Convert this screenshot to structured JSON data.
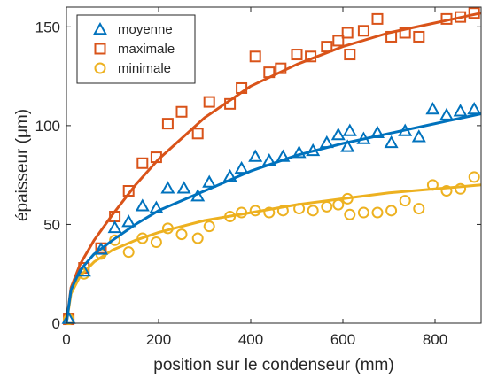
{
  "chart_data": {
    "type": "scatter",
    "title": "",
    "xlabel": "position sur le condenseur (mm)",
    "ylabel": "épaisseur (μm)",
    "xlim": [
      0,
      900
    ],
    "ylim": [
      0,
      160
    ],
    "xticks": [
      0,
      200,
      400,
      600,
      800
    ],
    "yticks": [
      0,
      50,
      100,
      150
    ],
    "grid": false,
    "legend_position": "top-left",
    "series": [
      {
        "name": "moyenne",
        "marker": "triangle",
        "color": "#0072BD",
        "points": [
          [
            5,
            2
          ],
          [
            38,
            26
          ],
          [
            75,
            37
          ],
          [
            105,
            48
          ],
          [
            135,
            51
          ],
          [
            165,
            59
          ],
          [
            195,
            58
          ],
          [
            220,
            68
          ],
          [
            255,
            68
          ],
          [
            285,
            64
          ],
          [
            310,
            71
          ],
          [
            355,
            74
          ],
          [
            380,
            78
          ],
          [
            410,
            84
          ],
          [
            440,
            82
          ],
          [
            470,
            84
          ],
          [
            505,
            86
          ],
          [
            535,
            87
          ],
          [
            565,
            91
          ],
          [
            590,
            95
          ],
          [
            610,
            89
          ],
          [
            615,
            97
          ],
          [
            645,
            93
          ],
          [
            675,
            96
          ],
          [
            705,
            91
          ],
          [
            735,
            97
          ],
          [
            765,
            94
          ],
          [
            795,
            108
          ],
          [
            825,
            105
          ],
          [
            855,
            107
          ],
          [
            885,
            108
          ]
        ],
        "fit_curve": [
          [
            0,
            0
          ],
          [
            10,
            17
          ],
          [
            30,
            27
          ],
          [
            60,
            35
          ],
          [
            100,
            42
          ],
          [
            150,
            50
          ],
          [
            200,
            57
          ],
          [
            300,
            67
          ],
          [
            400,
            77
          ],
          [
            500,
            85
          ],
          [
            600,
            91
          ],
          [
            700,
            96
          ],
          [
            800,
            101
          ],
          [
            900,
            106
          ]
        ]
      },
      {
        "name": "maximale",
        "marker": "square",
        "color": "#D95319",
        "points": [
          [
            5,
            2
          ],
          [
            38,
            28
          ],
          [
            75,
            38
          ],
          [
            105,
            54
          ],
          [
            135,
            67
          ],
          [
            165,
            81
          ],
          [
            195,
            84
          ],
          [
            220,
            101
          ],
          [
            250,
            107
          ],
          [
            285,
            96
          ],
          [
            310,
            112
          ],
          [
            355,
            111
          ],
          [
            380,
            119
          ],
          [
            410,
            135
          ],
          [
            440,
            127
          ],
          [
            465,
            129
          ],
          [
            500,
            136
          ],
          [
            530,
            135
          ],
          [
            565,
            140
          ],
          [
            590,
            143
          ],
          [
            610,
            147
          ],
          [
            615,
            136
          ],
          [
            645,
            148
          ],
          [
            675,
            154
          ],
          [
            705,
            145
          ],
          [
            735,
            147
          ],
          [
            765,
            145
          ],
          [
            825,
            154
          ],
          [
            855,
            155
          ],
          [
            885,
            157
          ]
        ],
        "fit_curve": [
          [
            0,
            0
          ],
          [
            10,
            18
          ],
          [
            30,
            30
          ],
          [
            60,
            42
          ],
          [
            100,
            55
          ],
          [
            150,
            70
          ],
          [
            200,
            83
          ],
          [
            300,
            104
          ],
          [
            400,
            120
          ],
          [
            500,
            131
          ],
          [
            600,
            140
          ],
          [
            700,
            147
          ],
          [
            800,
            152
          ],
          [
            900,
            157
          ]
        ]
      },
      {
        "name": "minimale",
        "marker": "circle",
        "color": "#EDB120",
        "points": [
          [
            5,
            2
          ],
          [
            38,
            25
          ],
          [
            75,
            35
          ],
          [
            105,
            42
          ],
          [
            135,
            36
          ],
          [
            165,
            43
          ],
          [
            195,
            41
          ],
          [
            220,
            48
          ],
          [
            250,
            45
          ],
          [
            285,
            43
          ],
          [
            310,
            49
          ],
          [
            355,
            54
          ],
          [
            380,
            56
          ],
          [
            410,
            57
          ],
          [
            440,
            56
          ],
          [
            470,
            57
          ],
          [
            505,
            58
          ],
          [
            535,
            57
          ],
          [
            565,
            59
          ],
          [
            590,
            60
          ],
          [
            610,
            63
          ],
          [
            615,
            55
          ],
          [
            645,
            56
          ],
          [
            675,
            56
          ],
          [
            705,
            57
          ],
          [
            735,
            62
          ],
          [
            765,
            58
          ],
          [
            795,
            70
          ],
          [
            825,
            67
          ],
          [
            855,
            68
          ],
          [
            885,
            74
          ]
        ],
        "fit_curve": [
          [
            0,
            0
          ],
          [
            10,
            15
          ],
          [
            30,
            24
          ],
          [
            60,
            31
          ],
          [
            100,
            37
          ],
          [
            150,
            42
          ],
          [
            200,
            46
          ],
          [
            300,
            52
          ],
          [
            400,
            56
          ],
          [
            500,
            60
          ],
          [
            600,
            63
          ],
          [
            700,
            66
          ],
          [
            800,
            68
          ],
          [
            900,
            70
          ]
        ]
      }
    ]
  }
}
